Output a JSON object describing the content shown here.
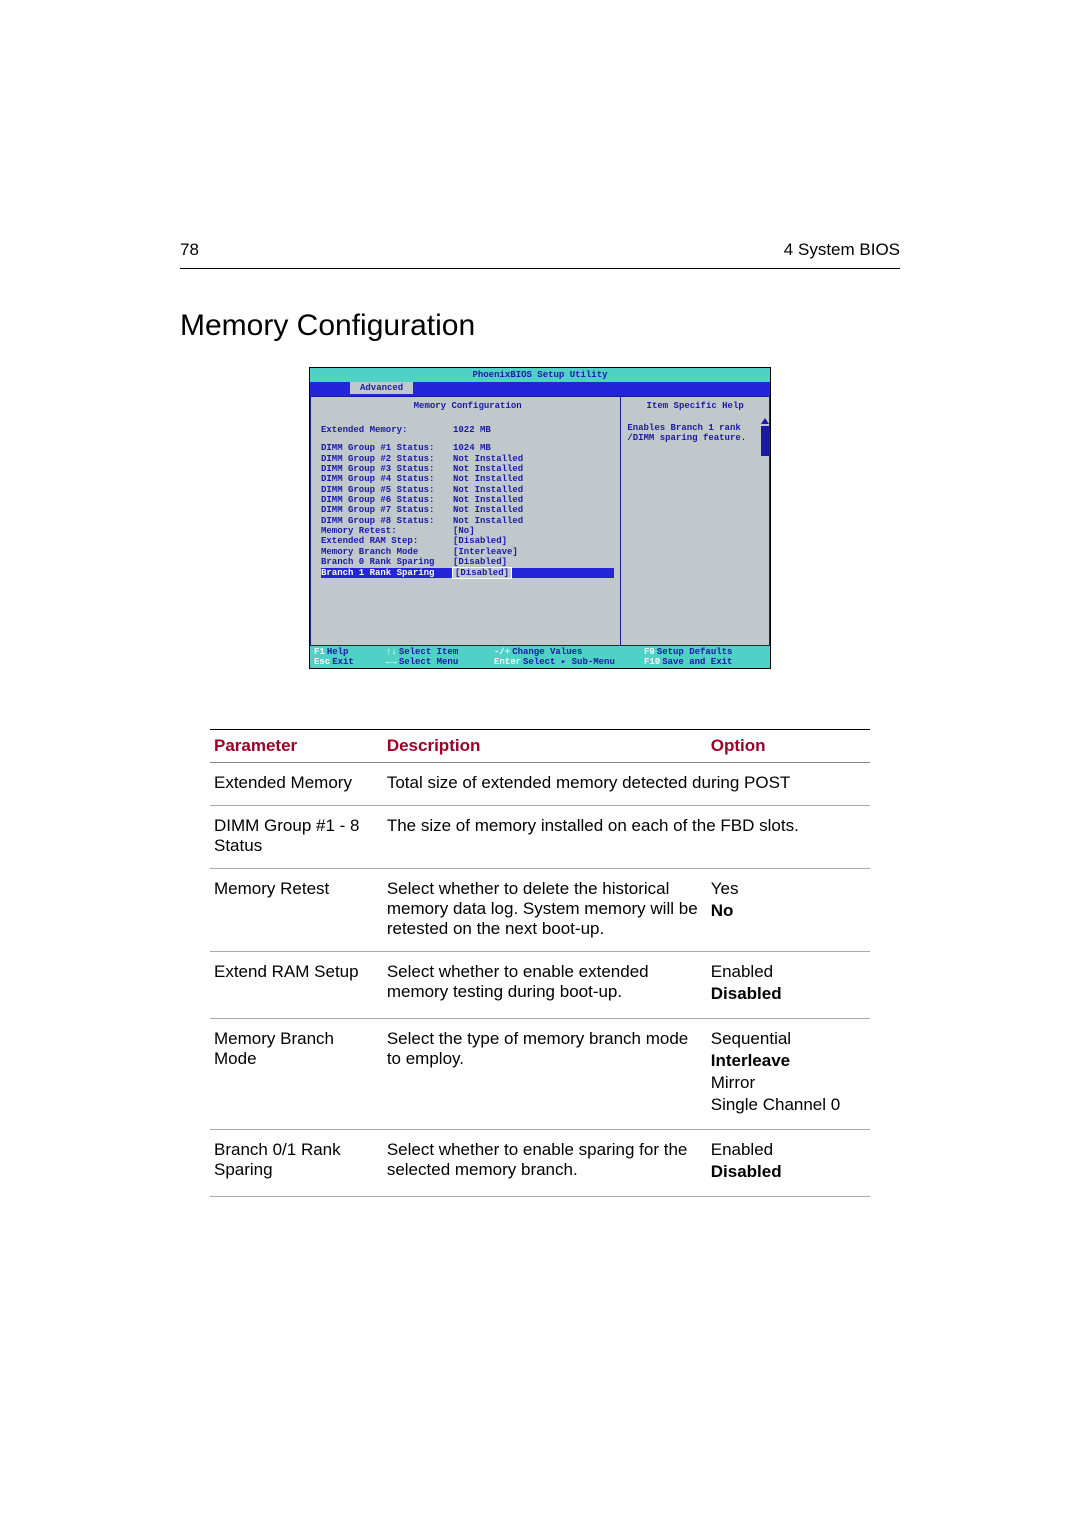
{
  "header": {
    "page_no": "78",
    "chapter": "4 System BIOS"
  },
  "title": "Memory Configuration",
  "bios": {
    "utility_title": "PhoenixBIOS Setup Utility",
    "active_tab": "Advanced",
    "left_title": "Memory Configuration",
    "help_title": "Item Specific Help",
    "help_text": "Enables Branch 1 rank /DIMM sparing feature.",
    "rows": [
      {
        "k": "Extended Memory:",
        "v": "1022 MB",
        "blank_after": true
      },
      {
        "k": "DIMM Group #1 Status:",
        "v": "1024 MB"
      },
      {
        "k": "DIMM Group #2 Status:",
        "v": "Not Installed"
      },
      {
        "k": "DIMM Group #3 Status:",
        "v": "Not Installed"
      },
      {
        "k": "DIMM Group #4 Status:",
        "v": "Not Installed"
      },
      {
        "k": "DIMM Group #5 Status:",
        "v": "Not Installed"
      },
      {
        "k": "DIMM Group #6 Status:",
        "v": "Not Installed"
      },
      {
        "k": "DIMM Group #7 Status:",
        "v": "Not Installed"
      },
      {
        "k": "DIMM Group #8 Status:",
        "v": "Not Installed"
      },
      {
        "k": "Memory Retest:",
        "v": "[No]"
      },
      {
        "k": "Extended RAM Step:",
        "v": "[Disabled]"
      },
      {
        "k": "Memory Branch Mode",
        "v": "[Interleave]"
      },
      {
        "k": "Branch 0 Rank Sparing",
        "v": "[Disabled]"
      },
      {
        "k": "Branch 1 Rank Sparing",
        "v": "Disabled]",
        "selected": true
      }
    ],
    "footer": [
      [
        {
          "key": "F1",
          "lbl": "Help"
        },
        {
          "key": "↑↓",
          "lbl": "Select Item"
        },
        {
          "key": "-/+",
          "lbl": "Change Values"
        },
        {
          "key": "F9",
          "lbl": "Setup Defaults"
        }
      ],
      [
        {
          "key": "Esc",
          "lbl": "Exit"
        },
        {
          "key": "←→",
          "lbl": "Select Menu"
        },
        {
          "key": "Enter",
          "lbl": "Select ▸ Sub-Menu"
        },
        {
          "key": "F10",
          "lbl": "Save and Exit"
        }
      ]
    ]
  },
  "table": {
    "headers": {
      "param": "Parameter",
      "desc": "Description",
      "opt": "Option"
    },
    "rows": [
      {
        "param": "Extended Memory",
        "desc": "Total size of extended memory detected during POST",
        "options": []
      },
      {
        "param": "DIMM Group #1 - 8  Status",
        "desc": "The size of memory installed on each of the FBD slots.",
        "options": []
      },
      {
        "param": "Memory Retest",
        "desc": "Select whether to delete the historical memory data log.  System memory will be retested on the next boot-up.",
        "options": [
          {
            "t": "Yes",
            "bold": false
          },
          {
            "t": "No",
            "bold": true
          }
        ]
      },
      {
        "param": "Extend RAM Setup",
        "desc": "Select whether to enable extended memory testing during boot-up.",
        "options": [
          {
            "t": "Enabled",
            "bold": false
          },
          {
            "t": "Disabled",
            "bold": true
          }
        ]
      },
      {
        "param": "Memory Branch Mode",
        "desc": "Select the type of memory branch mode to employ.",
        "options": [
          {
            "t": "Sequential",
            "bold": false
          },
          {
            "t": "Interleave",
            "bold": true
          },
          {
            "t": "Mirror",
            "bold": false
          },
          {
            "t": "Single Channel 0",
            "bold": false
          }
        ]
      },
      {
        "param": "Branch 0/1 Rank Sparing",
        "desc": "Select whether to enable sparing for the selected memory branch.",
        "options": [
          {
            "t": "Enabled",
            "bold": false
          },
          {
            "t": "Disabled",
            "bold": true
          }
        ]
      }
    ]
  }
}
